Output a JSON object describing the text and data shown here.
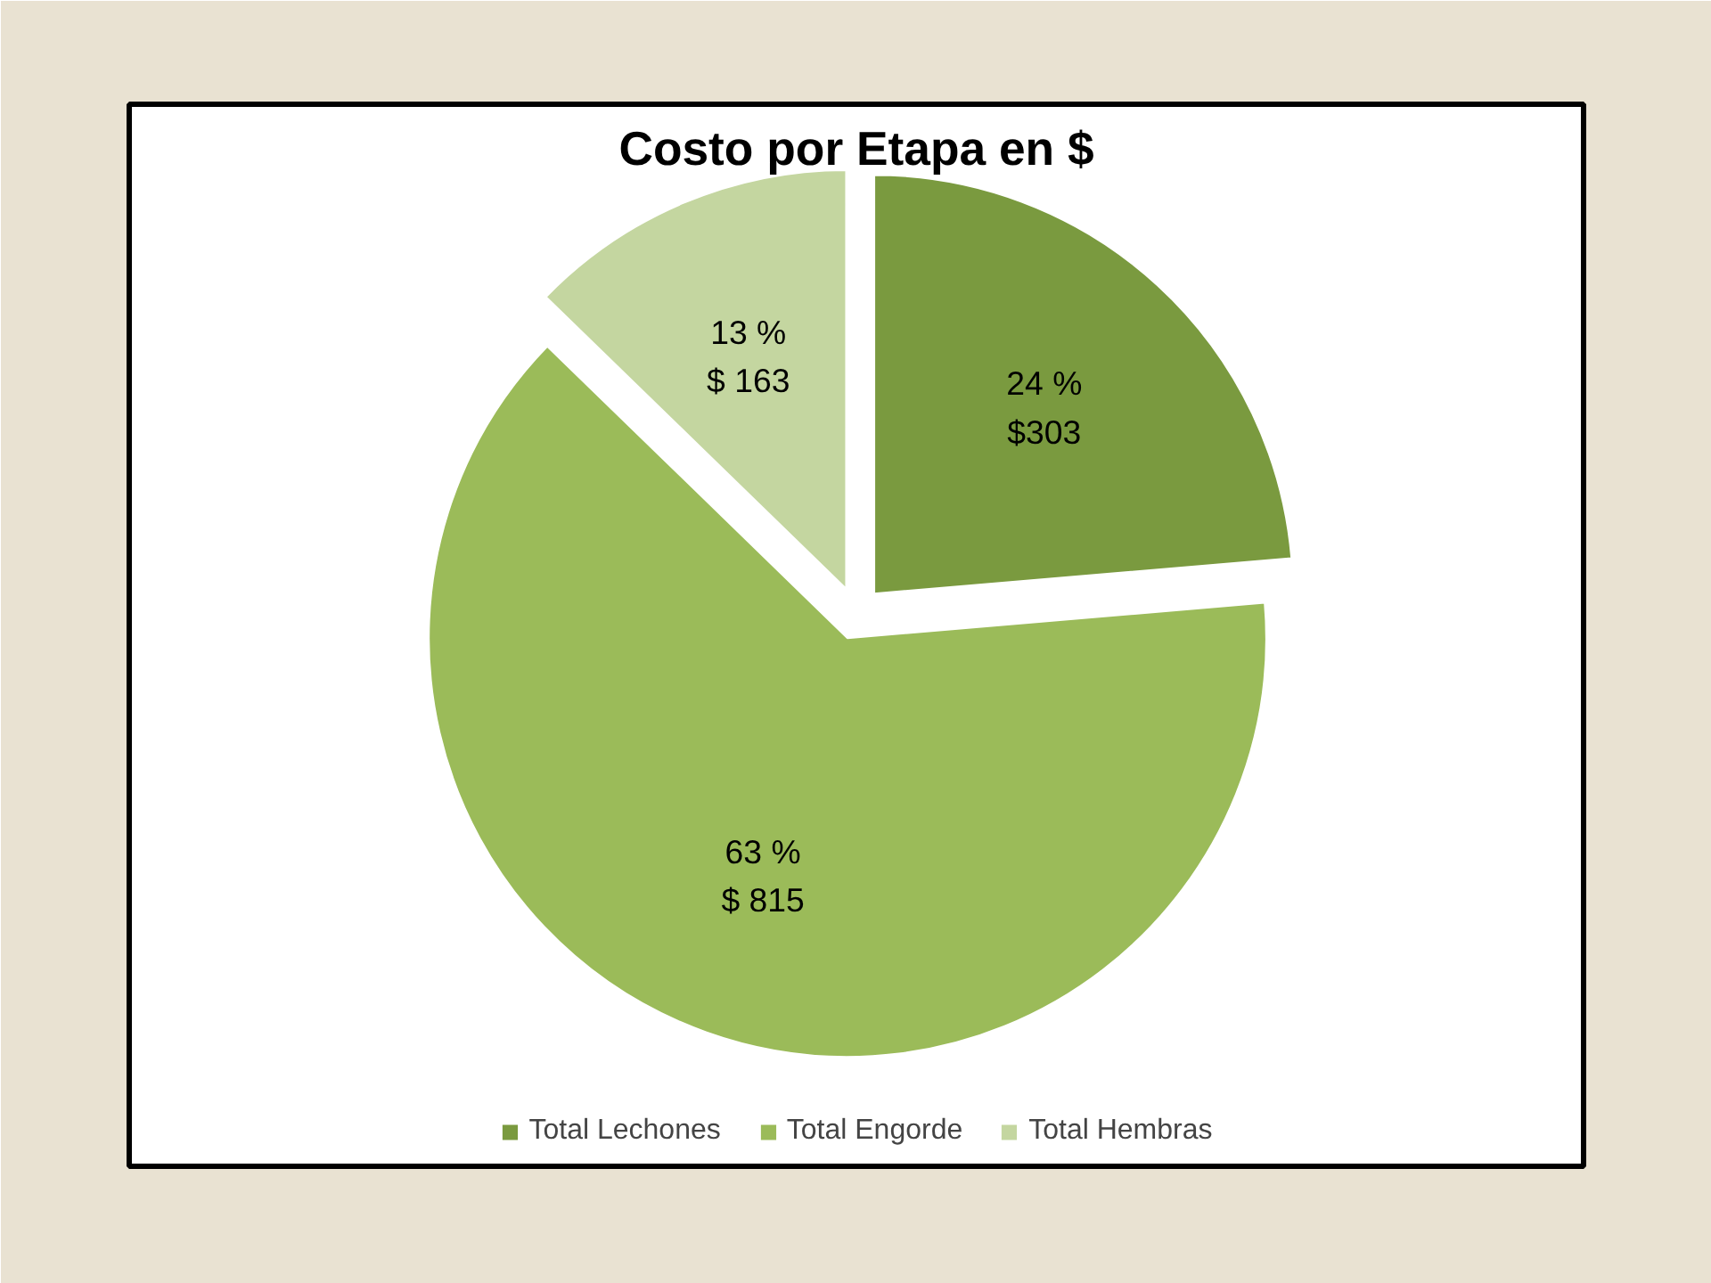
{
  "chart_data": {
    "type": "pie",
    "title": "Costo por Etapa en $",
    "categories": [
      "Total Lechones",
      "Total Engorde",
      "Total Hembras"
    ],
    "values": [
      303,
      815,
      163
    ],
    "value_labels": [
      "24 %\n$303",
      "63 %\n$ 815",
      "13 %\n$ 163"
    ],
    "colors": [
      "#7a9a3f",
      "#9bbb59",
      "#c4d6a0"
    ],
    "legend": "bottom"
  }
}
